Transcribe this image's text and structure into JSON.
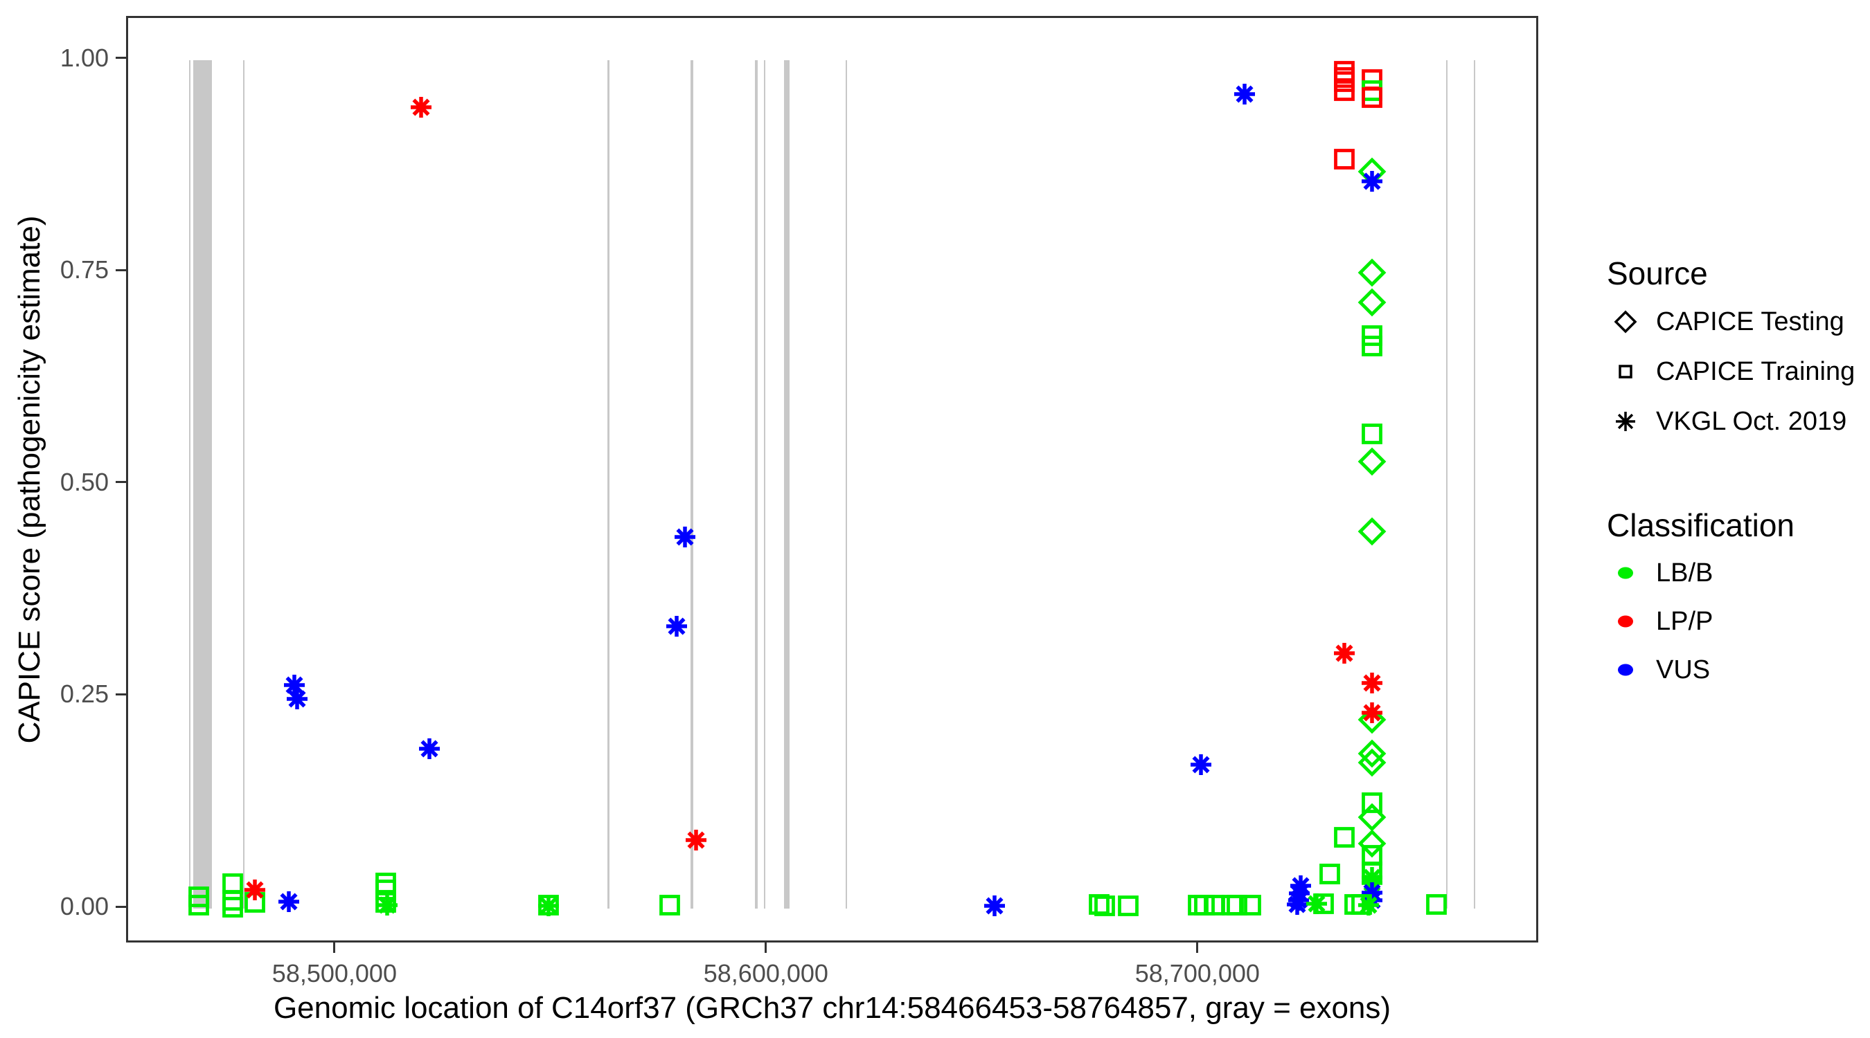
{
  "chart_data": {
    "type": "scatter",
    "xlabel": "Genomic location of C14orf37 (GRCh37 chr14:58466453-58764857, gray = exons)",
    "ylabel": "CAPICE score (pathogenicity estimate)",
    "x_range": [
      58451700,
      58779000
    ],
    "y_range": [
      -0.0424,
      1.0494
    ],
    "x_ticks": [
      {
        "value": 58500000,
        "label": "58,500,000"
      },
      {
        "value": 58600000,
        "label": "58,600,000"
      },
      {
        "value": 58700000,
        "label": "58,700,000"
      }
    ],
    "y_ticks": [
      {
        "value": 0.0,
        "label": "0.00"
      },
      {
        "value": 0.25,
        "label": "0.25"
      },
      {
        "value": 0.5,
        "label": "0.50"
      },
      {
        "value": 0.75,
        "label": "0.75"
      },
      {
        "value": 1.0,
        "label": "1.00"
      }
    ],
    "grid": false,
    "exon_color": "#C8C8C8",
    "exons": [
      {
        "start": 58466250,
        "end": 58466650
      },
      {
        "start": 58467250,
        "end": 58471600
      },
      {
        "start": 58478800,
        "end": 58479200
      },
      {
        "start": 58563200,
        "end": 58563700
      },
      {
        "start": 58582600,
        "end": 58583100
      },
      {
        "start": 58597400,
        "end": 58598100
      },
      {
        "start": 58599500,
        "end": 58599900
      },
      {
        "start": 58604200,
        "end": 58605500
      },
      {
        "start": 58618400,
        "end": 58618800
      },
      {
        "start": 58757600,
        "end": 58758000
      },
      {
        "start": 58764000,
        "end": 58764450
      }
    ],
    "colors": {
      "LB/B": "#00EE00",
      "LP/P": "#FF0000",
      "VUS": "#0000FF"
    },
    "shapes_by_source": {
      "CAPICE Testing": "diamond",
      "CAPICE Training": "square",
      "VKGL Oct. 2019": "asterisk"
    },
    "legend": {
      "source": {
        "title": "Source",
        "items": [
          {
            "label": "CAPICE Testing",
            "shape": "diamond"
          },
          {
            "label": "CAPICE Training",
            "shape": "square"
          },
          {
            "label": "VKGL Oct. 2019",
            "shape": "asterisk"
          }
        ]
      },
      "classification": {
        "title": "Classification",
        "items": [
          {
            "label": "LB/B",
            "color": "#00EE00"
          },
          {
            "label": "LP/P",
            "color": "#FF0000"
          },
          {
            "label": "VUS",
            "color": "#0000FF"
          }
        ]
      }
    },
    "points": [
      {
        "x": 58468000,
        "y": 0.014,
        "src": "CAPICE Training",
        "cls": "LB/B"
      },
      {
        "x": 58468000,
        "y": 0.004,
        "src": "CAPICE Training",
        "cls": "LB/B"
      },
      {
        "x": 58476000,
        "y": 0.029,
        "src": "CAPICE Training",
        "cls": "LB/B"
      },
      {
        "x": 58476000,
        "y": 0.01,
        "src": "CAPICE Training",
        "cls": "LB/B"
      },
      {
        "x": 58476000,
        "y": 0.002,
        "src": "CAPICE Training",
        "cls": "LB/B"
      },
      {
        "x": 58481000,
        "y": 0.007,
        "src": "CAPICE Training",
        "cls": "LB/B"
      },
      {
        "x": 58481000,
        "y": 0.022,
        "src": "VKGL Oct. 2019",
        "cls": "LP/P"
      },
      {
        "x": 58488900,
        "y": 0.008,
        "src": "VKGL Oct. 2019",
        "cls": "VUS"
      },
      {
        "x": 58490300,
        "y": 0.263,
        "src": "VKGL Oct. 2019",
        "cls": "VUS"
      },
      {
        "x": 58490800,
        "y": 0.247,
        "src": "VKGL Oct. 2019",
        "cls": "VUS"
      },
      {
        "x": 58511400,
        "y": 0.03,
        "src": "CAPICE Training",
        "cls": "LB/B"
      },
      {
        "x": 58511400,
        "y": 0.022,
        "src": "CAPICE Training",
        "cls": "LB/B"
      },
      {
        "x": 58511400,
        "y": 0.007,
        "src": "CAPICE Training",
        "cls": "LB/B"
      },
      {
        "x": 58511700,
        "y": 0.004,
        "src": "VKGL Oct. 2019",
        "cls": "LB/B"
      },
      {
        "x": 58519600,
        "y": 0.944,
        "src": "VKGL Oct. 2019",
        "cls": "LP/P"
      },
      {
        "x": 58521500,
        "y": 0.188,
        "src": "VKGL Oct. 2019",
        "cls": "VUS"
      },
      {
        "x": 58549100,
        "y": 0.004,
        "src": "CAPICE Training",
        "cls": "LB/B"
      },
      {
        "x": 58549200,
        "y": 0.003,
        "src": "VKGL Oct. 2019",
        "cls": "LB/B"
      },
      {
        "x": 58577200,
        "y": 0.004,
        "src": "CAPICE Training",
        "cls": "LB/B"
      },
      {
        "x": 58578800,
        "y": 0.333,
        "src": "VKGL Oct. 2019",
        "cls": "VUS"
      },
      {
        "x": 58580700,
        "y": 0.438,
        "src": "VKGL Oct. 2019",
        "cls": "VUS"
      },
      {
        "x": 58583300,
        "y": 0.081,
        "src": "VKGL Oct. 2019",
        "cls": "LP/P"
      },
      {
        "x": 58652500,
        "y": 0.003,
        "src": "VKGL Oct. 2019",
        "cls": "VUS"
      },
      {
        "x": 58676700,
        "y": 0.005,
        "src": "CAPICE Training",
        "cls": "LB/B"
      },
      {
        "x": 58678000,
        "y": 0.003,
        "src": "CAPICE Training",
        "cls": "LB/B"
      },
      {
        "x": 58683500,
        "y": 0.003,
        "src": "CAPICE Training",
        "cls": "LB/B"
      },
      {
        "x": 58699700,
        "y": 0.004,
        "src": "CAPICE Training",
        "cls": "LB/B"
      },
      {
        "x": 58701200,
        "y": 0.004,
        "src": "CAPICE Training",
        "cls": "LB/B"
      },
      {
        "x": 58703400,
        "y": 0.004,
        "src": "CAPICE Training",
        "cls": "LB/B"
      },
      {
        "x": 58707600,
        "y": 0.004,
        "src": "CAPICE Training",
        "cls": "LB/B"
      },
      {
        "x": 58708700,
        "y": 0.004,
        "src": "CAPICE Training",
        "cls": "LB/B"
      },
      {
        "x": 58711900,
        "y": 0.004,
        "src": "CAPICE Training",
        "cls": "LB/B"
      },
      {
        "x": 58700300,
        "y": 0.17,
        "src": "VKGL Oct. 2019",
        "cls": "VUS"
      },
      {
        "x": 58710400,
        "y": 0.96,
        "src": "VKGL Oct. 2019",
        "cls": "VUS"
      },
      {
        "x": 58733500,
        "y": 0.987,
        "src": "CAPICE Training",
        "cls": "LP/P"
      },
      {
        "x": 58733500,
        "y": 0.979,
        "src": "CAPICE Training",
        "cls": "LP/P"
      },
      {
        "x": 58733500,
        "y": 0.974,
        "src": "CAPICE Training",
        "cls": "LP/P"
      },
      {
        "x": 58733500,
        "y": 0.964,
        "src": "CAPICE Training",
        "cls": "LP/P"
      },
      {
        "x": 58733500,
        "y": 0.883,
        "src": "CAPICE Training",
        "cls": "LP/P"
      },
      {
        "x": 58733500,
        "y": 0.301,
        "src": "VKGL Oct. 2019",
        "cls": "LP/P"
      },
      {
        "x": 58733500,
        "y": 0.084,
        "src": "CAPICE Training",
        "cls": "LB/B"
      },
      {
        "x": 58730200,
        "y": 0.041,
        "src": "CAPICE Training",
        "cls": "LB/B"
      },
      {
        "x": 58740000,
        "y": 0.977,
        "src": "CAPICE Training",
        "cls": "LP/P"
      },
      {
        "x": 58740000,
        "y": 0.964,
        "src": "CAPICE Training",
        "cls": "LB/B"
      },
      {
        "x": 58740000,
        "y": 0.956,
        "src": "CAPICE Training",
        "cls": "LP/P"
      },
      {
        "x": 58740000,
        "y": 0.868,
        "src": "CAPICE Testing",
        "cls": "LB/B"
      },
      {
        "x": 58740000,
        "y": 0.857,
        "src": "VKGL Oct. 2019",
        "cls": "VUS"
      },
      {
        "x": 58740000,
        "y": 0.749,
        "src": "CAPICE Testing",
        "cls": "LB/B"
      },
      {
        "x": 58740000,
        "y": 0.714,
        "src": "CAPICE Testing",
        "cls": "LB/B"
      },
      {
        "x": 58740000,
        "y": 0.675,
        "src": "CAPICE Training",
        "cls": "LB/B"
      },
      {
        "x": 58740000,
        "y": 0.663,
        "src": "CAPICE Training",
        "cls": "LB/B"
      },
      {
        "x": 58740000,
        "y": 0.559,
        "src": "CAPICE Training",
        "cls": "LB/B"
      },
      {
        "x": 58740000,
        "y": 0.527,
        "src": "CAPICE Testing",
        "cls": "LB/B"
      },
      {
        "x": 58740000,
        "y": 0.444,
        "src": "CAPICE Testing",
        "cls": "LB/B"
      },
      {
        "x": 58740000,
        "y": 0.266,
        "src": "VKGL Oct. 2019",
        "cls": "LP/P"
      },
      {
        "x": 58740000,
        "y": 0.223,
        "src": "CAPICE Testing",
        "cls": "LB/B"
      },
      {
        "x": 58740000,
        "y": 0.231,
        "src": "VKGL Oct. 2019",
        "cls": "LP/P"
      },
      {
        "x": 58740000,
        "y": 0.183,
        "src": "CAPICE Testing",
        "cls": "LB/B"
      },
      {
        "x": 58740000,
        "y": 0.172,
        "src": "CAPICE Testing",
        "cls": "LB/B"
      },
      {
        "x": 58740000,
        "y": 0.125,
        "src": "CAPICE Training",
        "cls": "LB/B"
      },
      {
        "x": 58740000,
        "y": 0.108,
        "src": "CAPICE Testing",
        "cls": "LB/B"
      },
      {
        "x": 58740000,
        "y": 0.077,
        "src": "CAPICE Testing",
        "cls": "LB/B"
      },
      {
        "x": 58740000,
        "y": 0.063,
        "src": "CAPICE Training",
        "cls": "LB/B"
      },
      {
        "x": 58740000,
        "y": 0.043,
        "src": "CAPICE Training",
        "cls": "LB/B"
      },
      {
        "x": 58740000,
        "y": 0.037,
        "src": "VKGL Oct. 2019",
        "cls": "LB/B"
      },
      {
        "x": 58740000,
        "y": 0.03,
        "src": "VKGL Oct. 2019",
        "cls": "LB/B"
      },
      {
        "x": 58740000,
        "y": 0.019,
        "src": "VKGL Oct. 2019",
        "cls": "VUS"
      },
      {
        "x": 58740000,
        "y": 0.01,
        "src": "VKGL Oct. 2019",
        "cls": "VUS"
      },
      {
        "x": 58736000,
        "y": 0.005,
        "src": "CAPICE Training",
        "cls": "LB/B"
      },
      {
        "x": 58737600,
        "y": 0.005,
        "src": "CAPICE Training",
        "cls": "LB/B"
      },
      {
        "x": 58739200,
        "y": 0.004,
        "src": "VKGL Oct. 2019",
        "cls": "LB/B"
      },
      {
        "x": 58723500,
        "y": 0.027,
        "src": "VKGL Oct. 2019",
        "cls": "VUS"
      },
      {
        "x": 58723200,
        "y": 0.018,
        "src": "VKGL Oct. 2019",
        "cls": "VUS"
      },
      {
        "x": 58722900,
        "y": 0.01,
        "src": "VKGL Oct. 2019",
        "cls": "VUS"
      },
      {
        "x": 58722700,
        "y": 0.005,
        "src": "VKGL Oct. 2019",
        "cls": "VUS"
      },
      {
        "x": 58727100,
        "y": 0.006,
        "src": "VKGL Oct. 2019",
        "cls": "LB/B"
      },
      {
        "x": 58728800,
        "y": 0.006,
        "src": "CAPICE Training",
        "cls": "LB/B"
      },
      {
        "x": 58754900,
        "y": 0.005,
        "src": "CAPICE Training",
        "cls": "LB/B"
      }
    ]
  }
}
